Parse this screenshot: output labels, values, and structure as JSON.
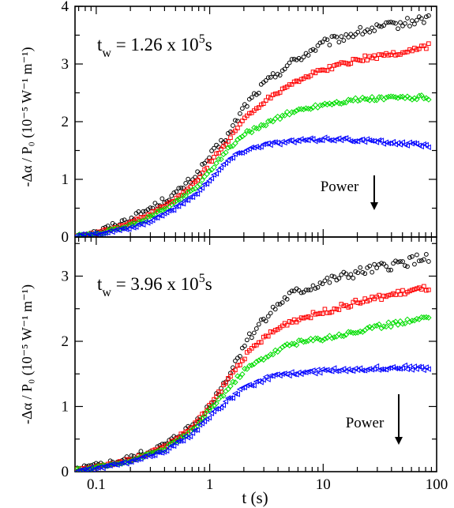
{
  "chart_data": [
    {
      "type": "scatter",
      "panel": "top",
      "annotation": {
        "prefix": "t",
        "sub": "w",
        "mid": " = 1.26 x 10",
        "sup": "5",
        "suffix": "s"
      },
      "power_label": "Power",
      "ylabel": "-Δα / P₀ (10⁻⁵ W⁻¹ m⁻¹)",
      "xlabel": "",
      "xscale": "log",
      "xlim": [
        0.065,
        100
      ],
      "ylim": [
        0,
        4
      ],
      "y_ticks": [
        "0",
        "1",
        "2",
        "3",
        "4"
      ],
      "legend": "none",
      "series": [
        {
          "marker": "circle",
          "color": "#000000",
          "knots": [
            [
              0.065,
              0.02
            ],
            [
              0.1,
              0.08
            ],
            [
              0.2,
              0.32
            ],
            [
              0.3,
              0.5
            ],
            [
              0.5,
              0.75
            ],
            [
              0.8,
              1.12
            ],
            [
              1.0,
              1.4
            ],
            [
              1.5,
              1.8
            ],
            [
              2,
              2.25
            ],
            [
              3,
              2.65
            ],
            [
              5,
              3.0
            ],
            [
              10,
              3.35
            ],
            [
              20,
              3.55
            ],
            [
              50,
              3.7
            ],
            [
              85,
              3.8
            ]
          ]
        },
        {
          "marker": "square",
          "color": "#ff0000",
          "knots": [
            [
              0.065,
              0.02
            ],
            [
              0.1,
              0.06
            ],
            [
              0.2,
              0.25
            ],
            [
              0.3,
              0.4
            ],
            [
              0.5,
              0.65
            ],
            [
              0.8,
              1.0
            ],
            [
              1.0,
              1.3
            ],
            [
              1.5,
              1.7
            ],
            [
              2,
              2.05
            ],
            [
              3,
              2.35
            ],
            [
              5,
              2.65
            ],
            [
              10,
              2.9
            ],
            [
              20,
              3.08
            ],
            [
              50,
              3.2
            ],
            [
              85,
              3.32
            ]
          ]
        },
        {
          "marker": "diamond",
          "color": "#00dd00",
          "knots": [
            [
              0.065,
              0.02
            ],
            [
              0.1,
              0.05
            ],
            [
              0.2,
              0.2
            ],
            [
              0.3,
              0.35
            ],
            [
              0.5,
              0.6
            ],
            [
              0.8,
              0.9
            ],
            [
              1.0,
              1.15
            ],
            [
              1.5,
              1.55
            ],
            [
              2,
              1.78
            ],
            [
              3,
              1.95
            ],
            [
              5,
              2.15
            ],
            [
              10,
              2.3
            ],
            [
              20,
              2.38
            ],
            [
              50,
              2.42
            ],
            [
              85,
              2.42
            ]
          ]
        },
        {
          "marker": "triangle-left",
          "color": "#0000ff",
          "knots": [
            [
              0.065,
              0.02
            ],
            [
              0.1,
              0.05
            ],
            [
              0.2,
              0.15
            ],
            [
              0.3,
              0.28
            ],
            [
              0.5,
              0.5
            ],
            [
              0.8,
              0.78
            ],
            [
              1.0,
              1.0
            ],
            [
              1.5,
              1.35
            ],
            [
              2,
              1.5
            ],
            [
              3,
              1.6
            ],
            [
              5,
              1.65
            ],
            [
              10,
              1.7
            ],
            [
              20,
              1.68
            ],
            [
              50,
              1.62
            ],
            [
              85,
              1.58
            ]
          ]
        }
      ]
    },
    {
      "type": "scatter",
      "panel": "bottom",
      "annotation": {
        "prefix": "t",
        "sub": "w",
        "mid": " = 3.96 x 10",
        "sup": "5",
        "suffix": "s"
      },
      "power_label": "Power",
      "ylabel": "-Δα / P₀ (10⁻⁵ W⁻¹ m⁻¹)",
      "xlabel": "t (s)",
      "xscale": "log",
      "xlim": [
        0.065,
        100
      ],
      "ylim": [
        0,
        3.6
      ],
      "x_ticks": [
        "0.1",
        "1",
        "10",
        "100"
      ],
      "y_ticks": [
        "0",
        "1",
        "2",
        "3"
      ],
      "legend": "none",
      "series": [
        {
          "marker": "circle",
          "color": "#000000",
          "knots": [
            [
              0.065,
              0.02
            ],
            [
              0.1,
              0.08
            ],
            [
              0.2,
              0.2
            ],
            [
              0.4,
              0.4
            ],
            [
              0.7,
              0.7
            ],
            [
              1.0,
              1.0
            ],
            [
              1.5,
              1.5
            ],
            [
              2,
              1.95
            ],
            [
              3,
              2.35
            ],
            [
              5,
              2.7
            ],
            [
              10,
              2.9
            ],
            [
              20,
              3.05
            ],
            [
              50,
              3.2
            ],
            [
              85,
              3.3
            ]
          ]
        },
        {
          "marker": "square",
          "color": "#ff0000",
          "knots": [
            [
              0.065,
              0.02
            ],
            [
              0.1,
              0.07
            ],
            [
              0.2,
              0.18
            ],
            [
              0.4,
              0.38
            ],
            [
              0.7,
              0.68
            ],
            [
              1.0,
              1.0
            ],
            [
              1.5,
              1.45
            ],
            [
              2,
              1.75
            ],
            [
              3,
              2.05
            ],
            [
              5,
              2.3
            ],
            [
              10,
              2.45
            ],
            [
              20,
              2.6
            ],
            [
              50,
              2.75
            ],
            [
              85,
              2.82
            ]
          ]
        },
        {
          "marker": "diamond",
          "color": "#00dd00",
          "knots": [
            [
              0.065,
              0.02
            ],
            [
              0.1,
              0.06
            ],
            [
              0.2,
              0.17
            ],
            [
              0.4,
              0.35
            ],
            [
              0.7,
              0.62
            ],
            [
              1.0,
              0.95
            ],
            [
              1.5,
              1.3
            ],
            [
              2,
              1.55
            ],
            [
              3,
              1.75
            ],
            [
              5,
              1.95
            ],
            [
              10,
              2.05
            ],
            [
              20,
              2.15
            ],
            [
              50,
              2.3
            ],
            [
              85,
              2.38
            ]
          ]
        },
        {
          "marker": "triangle-left",
          "color": "#0000ff",
          "knots": [
            [
              0.065,
              0.02
            ],
            [
              0.1,
              0.05
            ],
            [
              0.2,
              0.15
            ],
            [
              0.4,
              0.32
            ],
            [
              0.7,
              0.58
            ],
            [
              1.0,
              0.85
            ],
            [
              1.5,
              1.12
            ],
            [
              2,
              1.28
            ],
            [
              3,
              1.42
            ],
            [
              5,
              1.5
            ],
            [
              10,
              1.55
            ],
            [
              20,
              1.58
            ],
            [
              50,
              1.6
            ],
            [
              85,
              1.58
            ]
          ]
        }
      ]
    }
  ]
}
